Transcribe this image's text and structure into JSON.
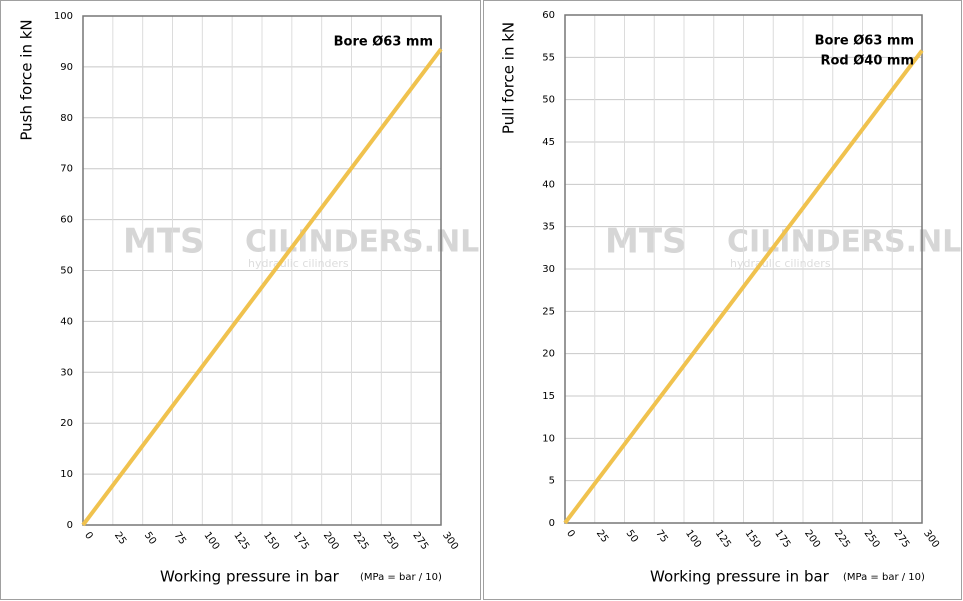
{
  "chart_data": [
    {
      "type": "line",
      "x_label": "Working pressure in bar",
      "x_note": "(MPa = bar / 10)",
      "y_label": "Push force in kN",
      "annotations": [
        "Bore Ø63 mm"
      ],
      "watermark": {
        "logo": "MTS",
        "brand": "CILINDERS.NL",
        "tagline": "hydraulic cilinders"
      },
      "x": [
        0,
        300
      ],
      "series": [
        {
          "color": "#f0c24e",
          "values": [
            0,
            93.5
          ]
        }
      ],
      "xlim": [
        0,
        300
      ],
      "xticks": [
        0,
        25,
        50,
        75,
        100,
        125,
        150,
        175,
        200,
        225,
        250,
        275,
        300
      ],
      "ylim": [
        0,
        100
      ],
      "yticks": [
        0,
        10,
        20,
        30,
        40,
        50,
        60,
        70,
        80,
        90,
        100
      ],
      "grid": true
    },
    {
      "type": "line",
      "x_label": "Working pressure in bar",
      "x_note": "(MPa = bar / 10)",
      "y_label": "Pull force in kN",
      "annotations": [
        "Bore Ø63 mm",
        "Rod Ø40 mm"
      ],
      "watermark": {
        "logo": "MTS",
        "brand": "CILINDERS.NL",
        "tagline": "hydraulic cilinders"
      },
      "x": [
        0,
        300
      ],
      "series": [
        {
          "color": "#f0c24e",
          "values": [
            0,
            55.8
          ]
        }
      ],
      "xlim": [
        0,
        300
      ],
      "xticks": [
        0,
        25,
        50,
        75,
        100,
        125,
        150,
        175,
        200,
        225,
        250,
        275,
        300
      ],
      "ylim": [
        0,
        60
      ],
      "yticks": [
        0,
        5,
        10,
        15,
        20,
        25,
        30,
        35,
        40,
        45,
        50,
        55,
        60
      ],
      "grid": true
    }
  ]
}
